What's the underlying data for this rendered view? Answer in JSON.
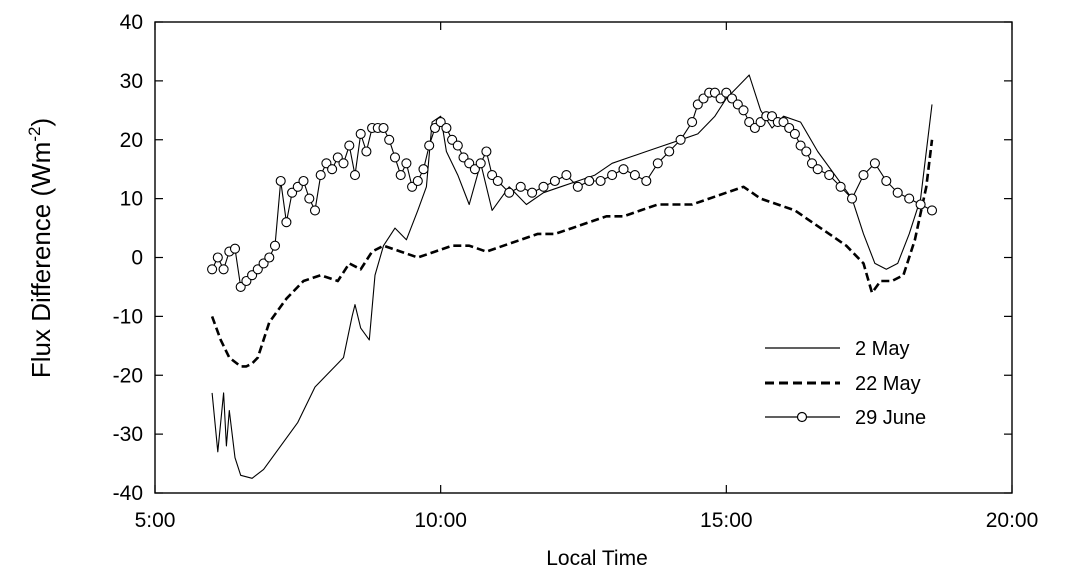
{
  "chart_data": {
    "type": "line",
    "title": "",
    "xlabel": "Local Time",
    "ylabel": "Flux Difference (Wm-2)",
    "ylabel_prefix": "Flux Difference (Wm",
    "ylabel_superscript": "-2",
    "ylabel_suffix": ")",
    "xlim": [
      5,
      20
    ],
    "ylim": [
      -40,
      40
    ],
    "x_ticks": [
      5,
      10,
      15,
      20
    ],
    "x_tick_labels": [
      "5:00",
      "10:00",
      "15:00",
      "20:00"
    ],
    "y_ticks": [
      -40,
      -30,
      -20,
      -10,
      0,
      10,
      20,
      30,
      40
    ],
    "y_tick_labels": [
      "-40",
      "-30",
      "-20",
      "-10",
      "0",
      "10",
      "20",
      "30",
      "40"
    ],
    "grid": false,
    "legend_position": "lower-right",
    "series": [
      {
        "name": "2 May",
        "style": "solid",
        "x": [
          6.0,
          6.1,
          6.2,
          6.25,
          6.3,
          6.4,
          6.5,
          6.7,
          6.9,
          7.2,
          7.5,
          7.8,
          8.1,
          8.3,
          8.45,
          8.5,
          8.6,
          8.75,
          8.85,
          9.0,
          9.2,
          9.4,
          9.6,
          9.75,
          9.85,
          10.0,
          10.1,
          10.3,
          10.5,
          10.7,
          10.9,
          11.2,
          11.5,
          11.8,
          12.1,
          12.4,
          12.7,
          13.0,
          13.3,
          13.6,
          13.9,
          14.2,
          14.5,
          14.8,
          15.0,
          15.2,
          15.4,
          15.6,
          15.8,
          16.0,
          16.3,
          16.6,
          16.9,
          17.2,
          17.4,
          17.6,
          17.8,
          18.0,
          18.2,
          18.4,
          18.6
        ],
        "y": [
          -23,
          -33,
          -23,
          -32,
          -26,
          -34,
          -37,
          -37.5,
          -36,
          -32,
          -28,
          -22,
          -19,
          -17,
          -10,
          -8,
          -12,
          -14,
          -3,
          2,
          5,
          3,
          8,
          12,
          23,
          24,
          18,
          14,
          9,
          16,
          8,
          12,
          9,
          11,
          12,
          13,
          14,
          16,
          17,
          18,
          19,
          20,
          21,
          24,
          27,
          29,
          31,
          25,
          22,
          24,
          23,
          18,
          14,
          10,
          4,
          -1,
          -2,
          -1,
          4,
          10,
          26
        ]
      },
      {
        "name": "22 May",
        "style": "dashed",
        "x": [
          6.0,
          6.15,
          6.3,
          6.5,
          6.6,
          6.7,
          6.8,
          7.0,
          7.3,
          7.6,
          7.9,
          8.2,
          8.4,
          8.6,
          8.8,
          9.0,
          9.3,
          9.6,
          9.9,
          10.2,
          10.5,
          10.8,
          11.1,
          11.4,
          11.7,
          12.0,
          12.3,
          12.6,
          12.9,
          13.2,
          13.5,
          13.8,
          14.1,
          14.4,
          14.7,
          15.0,
          15.3,
          15.6,
          15.9,
          16.2,
          16.5,
          16.8,
          17.1,
          17.4,
          17.55,
          17.7,
          17.9,
          18.1,
          18.3,
          18.5,
          18.6
        ],
        "y": [
          -10,
          -14,
          -17,
          -18.5,
          -18.5,
          -18,
          -17,
          -11,
          -7,
          -4,
          -3,
          -4,
          -1,
          -2,
          1,
          2,
          1,
          0,
          1,
          2,
          2,
          1,
          2,
          3,
          4,
          4,
          5,
          6,
          7,
          7,
          8,
          9,
          9,
          9,
          10,
          11,
          12,
          10,
          9,
          8,
          6,
          4,
          2,
          -1,
          -6,
          -4,
          -4,
          -3,
          3,
          12,
          20
        ]
      },
      {
        "name": "29 June",
        "style": "solid-circle-markers",
        "x": [
          6.0,
          6.1,
          6.2,
          6.3,
          6.4,
          6.5,
          6.6,
          6.7,
          6.8,
          6.9,
          7.0,
          7.1,
          7.2,
          7.3,
          7.4,
          7.5,
          7.6,
          7.7,
          7.8,
          7.9,
          8.0,
          8.1,
          8.2,
          8.3,
          8.4,
          8.5,
          8.6,
          8.7,
          8.8,
          8.9,
          9.0,
          9.1,
          9.2,
          9.3,
          9.4,
          9.5,
          9.6,
          9.7,
          9.8,
          9.9,
          10.0,
          10.1,
          10.2,
          10.3,
          10.4,
          10.5,
          10.6,
          10.7,
          10.8,
          10.9,
          11.0,
          11.2,
          11.4,
          11.6,
          11.8,
          12.0,
          12.2,
          12.4,
          12.6,
          12.8,
          13.0,
          13.2,
          13.4,
          13.6,
          13.8,
          14.0,
          14.2,
          14.4,
          14.5,
          14.6,
          14.7,
          14.8,
          14.9,
          15.0,
          15.1,
          15.2,
          15.3,
          15.4,
          15.5,
          15.6,
          15.7,
          15.8,
          15.9,
          16.0,
          16.1,
          16.2,
          16.3,
          16.4,
          16.5,
          16.6,
          16.8,
          17.0,
          17.2,
          17.4,
          17.6,
          17.8,
          18.0,
          18.2,
          18.4,
          18.6
        ],
        "y": [
          -2,
          0,
          -2,
          1,
          1.5,
          -5,
          -4,
          -3,
          -2,
          -1,
          0,
          2,
          13,
          6,
          11,
          12,
          13,
          10,
          8,
          14,
          16,
          15,
          17,
          16,
          19,
          14,
          21,
          18,
          22,
          22,
          22,
          20,
          17,
          14,
          16,
          12,
          13,
          15,
          19,
          22,
          23,
          22,
          20,
          19,
          17,
          16,
          15,
          16,
          18,
          14,
          13,
          11,
          12,
          11,
          12,
          13,
          14,
          12,
          13,
          13,
          14,
          15,
          14,
          13,
          16,
          18,
          20,
          23,
          26,
          27,
          28,
          28,
          27,
          28,
          27,
          26,
          25,
          23,
          22,
          23,
          24,
          24,
          23,
          23,
          22,
          21,
          19,
          18,
          16,
          15,
          14,
          12,
          10,
          14,
          16,
          13,
          11,
          10,
          9,
          8
        ]
      }
    ]
  }
}
